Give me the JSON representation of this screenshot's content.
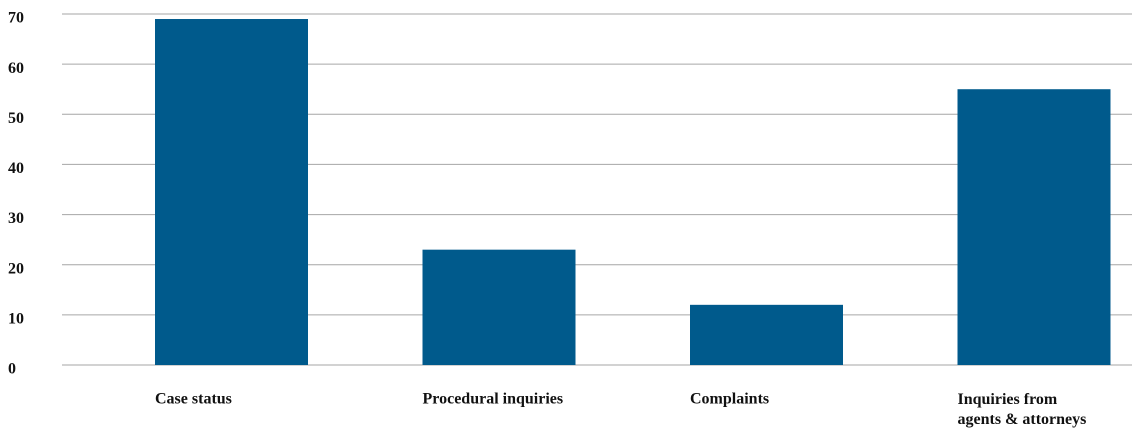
{
  "chart_data": {
    "type": "bar",
    "categories": [
      "Case status",
      "Procedural inquiries",
      "Complaints",
      "Inquiries from agents & attorneys"
    ],
    "values": [
      69,
      23,
      12,
      55
    ],
    "color": "#005a8c",
    "ylim": [
      0,
      70
    ],
    "yticks": [
      0,
      10,
      20,
      30,
      40,
      50,
      60,
      70
    ],
    "grid": true
  }
}
